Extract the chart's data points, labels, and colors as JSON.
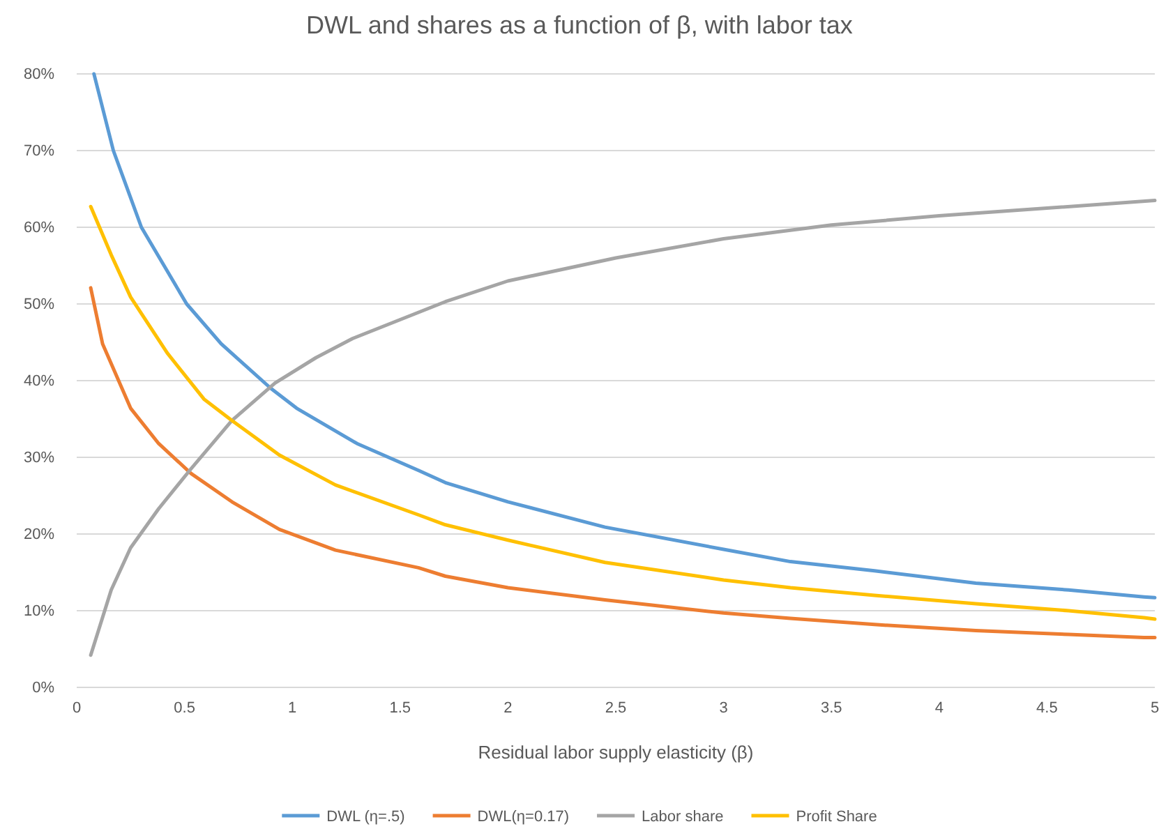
{
  "chart_data": {
    "type": "line",
    "title": "DWL and shares as a function of β, with labor tax",
    "xlabel": "Residual labor supply elasticity (β)",
    "xlim": [
      0,
      5
    ],
    "xticks": [
      0,
      0.5,
      1,
      1.5,
      2,
      2.5,
      3,
      3.5,
      4,
      4.5,
      5
    ],
    "ylim": [
      0,
      0.8
    ],
    "yticks": [
      {
        "value": 0,
        "label": "0%"
      },
      {
        "value": 0.1,
        "label": "10%"
      },
      {
        "value": 0.2,
        "label": "20%"
      },
      {
        "value": 0.3,
        "label": "30%"
      },
      {
        "value": 0.4,
        "label": "40%"
      },
      {
        "value": 0.5,
        "label": "50%"
      },
      {
        "value": 0.6,
        "label": "60%"
      },
      {
        "value": 0.7,
        "label": "70%"
      },
      {
        "value": 0.8,
        "label": "80%"
      }
    ],
    "grid": "y",
    "legend": "bottom",
    "marker": "none",
    "line_style": "solid",
    "series": [
      {
        "name": "DWL (η=.5)",
        "color": "#5b9bd5",
        "x": [
          0.08,
          0.17,
          0.3,
          0.51,
          0.67,
          0.9,
          1.02,
          1.3,
          1.585,
          1.71,
          2,
          2.45,
          3,
          3.31,
          3.7,
          4.17,
          4.6,
          4.95,
          5
        ],
        "values": [
          0.8,
          0.7,
          0.6,
          0.5,
          0.448,
          0.39,
          0.364,
          0.318,
          0.283,
          0.267,
          0.242,
          0.209,
          0.18,
          0.164,
          0.152,
          0.136,
          0.127,
          0.118,
          0.117
        ]
      },
      {
        "name": "DWL(η=0.17)",
        "color": "#ed7d31",
        "x": [
          0.065,
          0.12,
          0.25,
          0.38,
          0.53,
          0.72,
          0.94,
          1.2,
          1.585,
          1.71,
          2,
          2.45,
          3,
          3.31,
          3.7,
          4.17,
          4.6,
          4.95,
          5
        ],
        "values": [
          0.521,
          0.448,
          0.364,
          0.318,
          0.279,
          0.242,
          0.206,
          0.179,
          0.156,
          0.145,
          0.13,
          0.114,
          0.097,
          0.09,
          0.082,
          0.074,
          0.069,
          0.065,
          0.065
        ]
      },
      {
        "name": "Labor share",
        "color": "#a5a5a5",
        "x": [
          0.065,
          0.16,
          0.25,
          0.38,
          0.53,
          0.72,
          0.92,
          1.11,
          1.28,
          1.71,
          2,
          2.5,
          3,
          3.5,
          4,
          4.5,
          5
        ],
        "values": [
          0.042,
          0.127,
          0.182,
          0.233,
          0.285,
          0.348,
          0.397,
          0.43,
          0.455,
          0.503,
          0.53,
          0.56,
          0.585,
          0.603,
          0.615,
          0.625,
          0.635
        ]
      },
      {
        "name": "Profit Share",
        "color": "#ffc000",
        "x": [
          0.065,
          0.16,
          0.25,
          0.42,
          0.59,
          0.72,
          0.94,
          1.2,
          1.585,
          1.71,
          2,
          2.45,
          3,
          3.31,
          3.7,
          4.17,
          4.6,
          4.95,
          5
        ],
        "values": [
          0.627,
          0.564,
          0.509,
          0.436,
          0.376,
          0.348,
          0.303,
          0.264,
          0.225,
          0.212,
          0.192,
          0.163,
          0.14,
          0.13,
          0.12,
          0.109,
          0.1,
          0.091,
          0.089
        ]
      }
    ]
  }
}
